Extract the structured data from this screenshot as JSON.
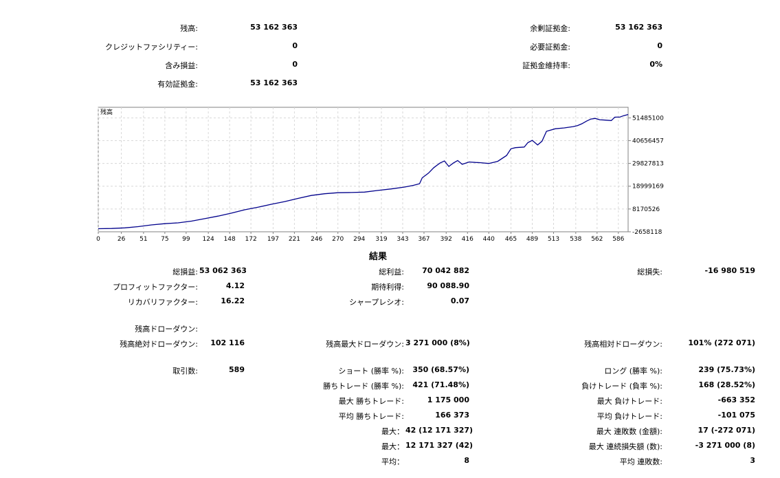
{
  "account": {
    "balance": {
      "label": "残高:",
      "value": "53 162 363"
    },
    "credit": {
      "label": "クレジットファシリティー:",
      "value": "0"
    },
    "floating": {
      "label": "含み損益:",
      "value": "0"
    },
    "equity": {
      "label": "有効証拠金:",
      "value": "53 162 363"
    },
    "free_margin": {
      "label": "余剰証拠金:",
      "value": "53 162 363"
    },
    "margin": {
      "label": "必要証拠金:",
      "value": "0"
    },
    "margin_level": {
      "label": "証拠金維持率:",
      "value": "0%"
    }
  },
  "chart_data": {
    "type": "line",
    "title": "残高",
    "xlabel": "",
    "ylabel": "",
    "x_ticks": [
      "0",
      "26",
      "51",
      "75",
      "99",
      "124",
      "148",
      "172",
      "197",
      "221",
      "246",
      "270",
      "294",
      "319",
      "343",
      "367",
      "392",
      "416",
      "440",
      "465",
      "489",
      "513",
      "538",
      "562",
      "586"
    ],
    "y_ticks": [
      "51485100",
      "40656457",
      "29827813",
      "18999169",
      "8170526",
      "-2658118"
    ],
    "xlim": [
      0,
      597
    ],
    "ylim": [
      -2658118,
      56500000
    ],
    "line_color": "#00008b",
    "grid": true,
    "series": [
      {
        "x": [
          0,
          15,
          30,
          45,
          60,
          75,
          90,
          105,
          120,
          135,
          150,
          165,
          180,
          195,
          210,
          225,
          240,
          255,
          270,
          285,
          300,
          315,
          330,
          345,
          355,
          362,
          365,
          372,
          378,
          385,
          390,
          395,
          400,
          405,
          410,
          418,
          425,
          430,
          440,
          450,
          460,
          465,
          470,
          480,
          484,
          489,
          495,
          500,
          505,
          515,
          525,
          535,
          540,
          545,
          550,
          555,
          560,
          565,
          572,
          578,
          582,
          588,
          592,
          597
        ],
        "y": [
          -1200000,
          -1100000,
          -800000,
          -200000,
          600000,
          1200000,
          1600000,
          2400000,
          3600000,
          4800000,
          6200000,
          7800000,
          9000000,
          10400000,
          11700000,
          13200000,
          14600000,
          15400000,
          15900000,
          16000000,
          16200000,
          17000000,
          17700000,
          18600000,
          19400000,
          20200000,
          23000000,
          25200000,
          27800000,
          30000000,
          31000000,
          28400000,
          30000000,
          31200000,
          29400000,
          30500000,
          30300000,
          30200000,
          29800000,
          30800000,
          33600000,
          36800000,
          37300000,
          37600000,
          39700000,
          40800000,
          38600000,
          40400000,
          45100000,
          46300000,
          46700000,
          47300000,
          47800000,
          48700000,
          49900000,
          50900000,
          51200000,
          50600000,
          50400000,
          50200000,
          51800000,
          51900000,
          52500000,
          53062363
        ]
      }
    ]
  },
  "results": {
    "title": "結果",
    "net_profit": {
      "label": "総損益:",
      "value": "53 062 363"
    },
    "gross_profit": {
      "label": "総利益:",
      "value": "70 042 882"
    },
    "gross_loss": {
      "label": "総損失:",
      "value": "-16 980 519"
    },
    "profit_factor": {
      "label": "プロフィットファクター:",
      "value": "4.12"
    },
    "expected_payoff": {
      "label": "期待利得:",
      "value": "90 088.90"
    },
    "recovery_factor": {
      "label": "リカバリファクター:",
      "value": "16.22"
    },
    "sharpe": {
      "label": "シャープレシオ:",
      "value": "0.07"
    },
    "drawdown_header": {
      "label": "残高ドローダウン:"
    },
    "abs_drawdown": {
      "label": "残高絶対ドローダウン:",
      "value": "102 116"
    },
    "max_drawdown": {
      "label": "残高最大ドローダウン:",
      "value": "3 271 000 (8%)"
    },
    "rel_drawdown": {
      "label": "残高相対ドローダウン:",
      "value": "101% (272 071)"
    },
    "total_trades": {
      "label": "取引数:",
      "value": "589"
    },
    "short": {
      "label": "ショート (勝率 %):",
      "value": "350 (68.57%)"
    },
    "long": {
      "label": "ロング (勝率 %):",
      "value": "239 (75.73%)"
    },
    "profit_trades": {
      "label": "勝ちトレード (勝率 %):",
      "value": "421 (71.48%)"
    },
    "loss_trades": {
      "label": "負けトレード (負率 %):",
      "value": "168 (28.52%)"
    },
    "largest_profit": {
      "label": "最大 勝ちトレード:",
      "value": "1 175 000"
    },
    "largest_loss": {
      "label": "最大 負けトレード:",
      "value": "-663 352"
    },
    "avg_profit": {
      "label": "平均 勝ちトレード:",
      "value": "166 373"
    },
    "avg_loss": {
      "label": "平均 負けトレード:",
      "value": "-101 075"
    },
    "max_cons_wins": {
      "label": "最大：",
      "value": "42 (12 171 327)"
    },
    "max_cons_losses": {
      "label": "最大 連敗数 (金額):",
      "value": "17 (-272 071)"
    },
    "max_cons_profit": {
      "label": "最大：",
      "value": "12 171 327 (42)"
    },
    "max_cons_loss": {
      "label": "最大 連続損失額 (数):",
      "value": "-3 271 000 (8)"
    },
    "avg_cons_wins": {
      "label": "平均：",
      "value": "8"
    },
    "avg_cons_losses": {
      "label": "平均 連敗数:",
      "value": "3"
    }
  }
}
